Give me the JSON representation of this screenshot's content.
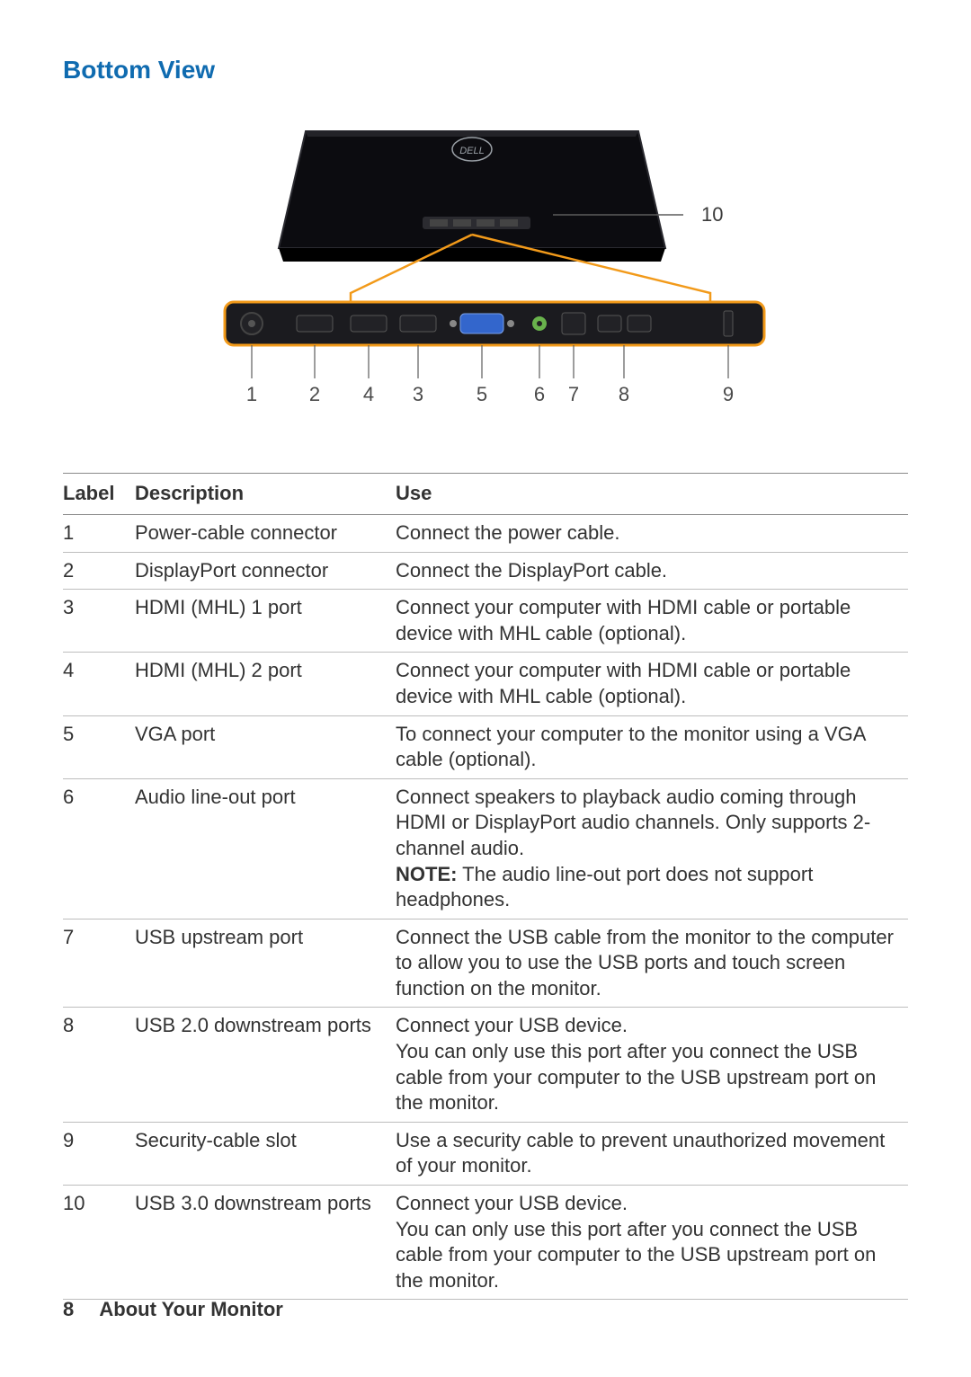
{
  "section_title": "Bottom View",
  "diagram": {
    "side_callout": "10",
    "bottom_labels": [
      "1",
      "2",
      "4",
      "3",
      "5",
      "6",
      "7",
      "8",
      "9"
    ],
    "colors": {
      "monitor_fill": "#0c0c10",
      "monitor_stroke": "#2a2a30",
      "panel_stroke": "#f29a1a",
      "panel_fill": "#1b1b1f",
      "port_fill": "#222226",
      "vga_fill": "#3366cc",
      "jack_fill": "#69b34c",
      "pointer_stroke": "#5c5c5c",
      "label_color": "#4a4a4a"
    }
  },
  "table": {
    "headers": {
      "label": "Label",
      "description": "Description",
      "use": "Use"
    },
    "rows": [
      {
        "label": "1",
        "desc": "Power-cable connector",
        "use": "Connect the power cable."
      },
      {
        "label": "2",
        "desc": "DisplayPort connector",
        "use": "Connect the DisplayPort cable."
      },
      {
        "label": "3",
        "desc": "HDMI (MHL) 1 port",
        "use": "Connect your computer with HDMI cable or portable device with MHL cable (optional)."
      },
      {
        "label": "4",
        "desc": "HDMI (MHL) 2 port",
        "use": "Connect your computer with HDMI cable or portable device with MHL cable (optional)."
      },
      {
        "label": "5",
        "desc": "VGA port",
        "use": "To connect your computer to the monitor using a VGA cable (optional)."
      },
      {
        "label": "6",
        "desc": "Audio line-out port",
        "use_pre": "Connect speakers to playback audio coming through HDMI or DisplayPort audio channels. Only supports 2-channel audio.\n",
        "note_label": "NOTE:",
        "use_post": " The audio line-out port does not support headphones."
      },
      {
        "label": "7",
        "desc": "USB upstream port",
        "use": "Connect the USB cable from the monitor to the computer to allow you to use the USB ports and touch screen function on the monitor."
      },
      {
        "label": "8",
        "desc": "USB 2.0 downstream ports",
        "use": "Connect your USB device.\nYou can only use this port after you connect the USB cable from your computer to the USB upstream port on the monitor."
      },
      {
        "label": "9",
        "desc": "Security-cable slot",
        "use": "Use a security cable to prevent unauthorized movement of your monitor."
      },
      {
        "label": "10",
        "desc": "USB 3.0 downstream ports",
        "use": "Connect your USB device.\nYou can only use this port after you connect the USB cable from your computer to the USB upstream port on the monitor."
      }
    ]
  },
  "footer": {
    "page": "8",
    "chapter": "About Your Monitor"
  }
}
